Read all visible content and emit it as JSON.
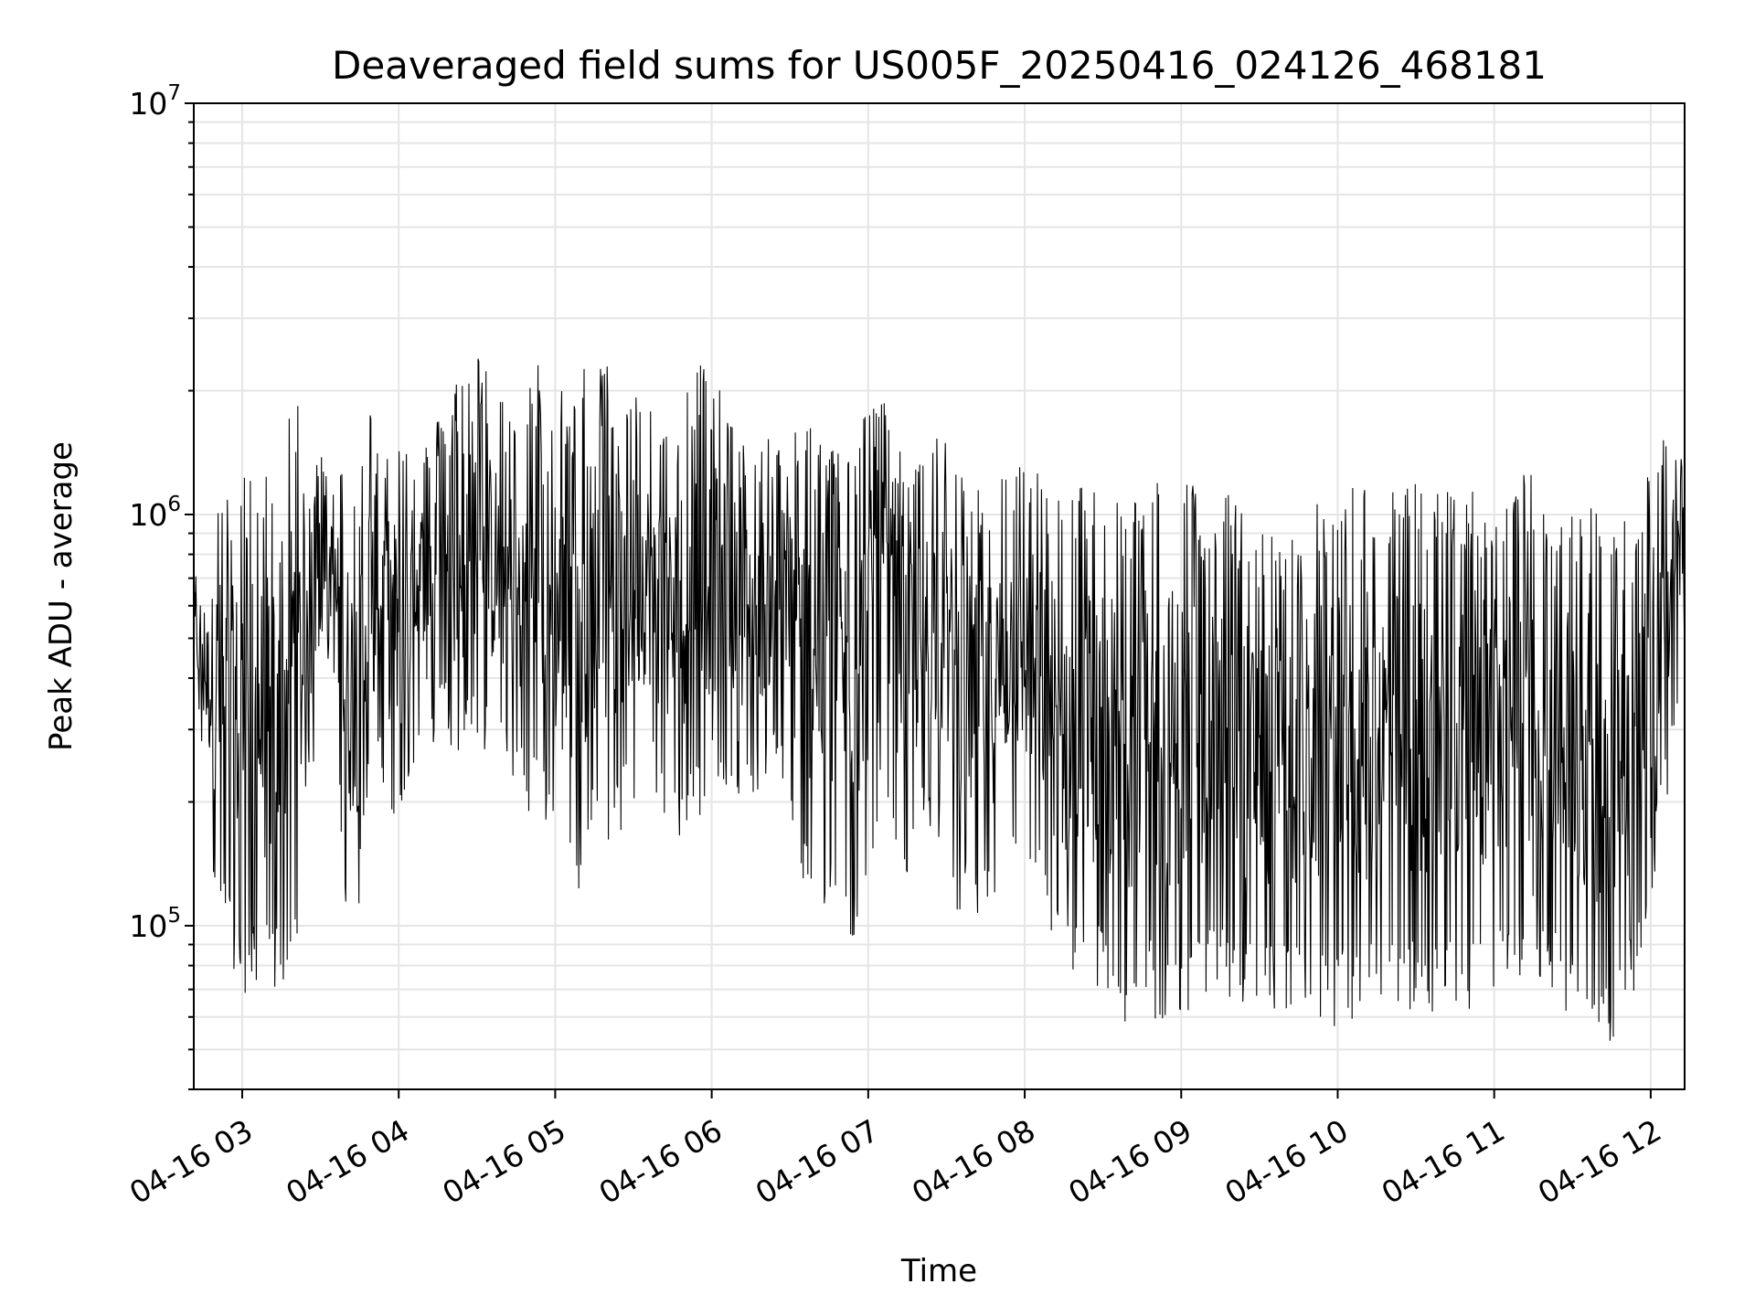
{
  "chart_data": {
    "type": "line",
    "title": "Deaveraged field sums for US005F_20250416_024126_468181",
    "xlabel": "Time",
    "ylabel": "Peak ADU - average",
    "yscale": "log",
    "ylim": [
      40000,
      10000000
    ],
    "xlim": [
      "2025-04-16T02:41:26",
      "2025-04-16T12:13:00"
    ],
    "grid": true,
    "line_color": "#000000",
    "grid_color": "#e5e5e5",
    "x_ticks": [
      {
        "label": "04-16 03",
        "t": "2025-04-16T03:00:00"
      },
      {
        "label": "04-16 04",
        "t": "2025-04-16T04:00:00"
      },
      {
        "label": "04-16 05",
        "t": "2025-04-16T05:00:00"
      },
      {
        "label": "04-16 06",
        "t": "2025-04-16T06:00:00"
      },
      {
        "label": "04-16 07",
        "t": "2025-04-16T07:00:00"
      },
      {
        "label": "04-16 08",
        "t": "2025-04-16T08:00:00"
      },
      {
        "label": "04-16 09",
        "t": "2025-04-16T09:00:00"
      },
      {
        "label": "04-16 10",
        "t": "2025-04-16T10:00:00"
      },
      {
        "label": "04-16 11",
        "t": "2025-04-16T11:00:00"
      },
      {
        "label": "04-16 12",
        "t": "2025-04-16T12:00:00"
      }
    ],
    "y_ticks": [
      {
        "base": "10",
        "exp": "5",
        "value": 100000
      },
      {
        "base": "10",
        "exp": "6",
        "value": 1000000
      },
      {
        "base": "10",
        "exp": "7",
        "value": 10000000
      }
    ],
    "series": [
      {
        "x": [
          "2025-04-16T02:41:26",
          "2025-04-16T02:45:00",
          "2025-04-16T02:50:00",
          "2025-04-16T02:55:00",
          "2025-04-16T03:00:00",
          "2025-04-16T03:05:00",
          "2025-04-16T03:10:00",
          "2025-04-16T03:15:00",
          "2025-04-16T03:20:00",
          "2025-04-16T03:25:00",
          "2025-04-16T03:30:00",
          "2025-04-16T03:35:00",
          "2025-04-16T03:40:00",
          "2025-04-16T03:45:00",
          "2025-04-16T03:50:00",
          "2025-04-16T03:55:00",
          "2025-04-16T04:00:00",
          "2025-04-16T04:10:00",
          "2025-04-16T04:20:00",
          "2025-04-16T04:27:00",
          "2025-04-16T04:35:00",
          "2025-04-16T04:45:00",
          "2025-04-16T04:55:00",
          "2025-04-16T05:05:00",
          "2025-04-16T05:15:00",
          "2025-04-16T05:25:00",
          "2025-04-16T05:35:00",
          "2025-04-16T05:45:00",
          "2025-04-16T05:55:00",
          "2025-04-16T06:05:00",
          "2025-04-16T06:15:00",
          "2025-04-16T06:25:00",
          "2025-04-16T06:35:00",
          "2025-04-16T06:45:00",
          "2025-04-16T06:55:00",
          "2025-04-16T07:05:00",
          "2025-04-16T07:15:00",
          "2025-04-16T07:25:00",
          "2025-04-16T07:35:00",
          "2025-04-16T07:45:00",
          "2025-04-16T07:55:00",
          "2025-04-16T08:05:00",
          "2025-04-16T08:15:00",
          "2025-04-16T08:25:00",
          "2025-04-16T08:35:00",
          "2025-04-16T08:45:00",
          "2025-04-16T08:55:00",
          "2025-04-16T09:05:00",
          "2025-04-16T09:15:00",
          "2025-04-16T09:25:00",
          "2025-04-16T09:35:00",
          "2025-04-16T09:45:00",
          "2025-04-16T09:55:00",
          "2025-04-16T10:05:00",
          "2025-04-16T10:15:00",
          "2025-04-16T10:25:00",
          "2025-04-16T10:35:00",
          "2025-04-16T10:45:00",
          "2025-04-16T10:55:00",
          "2025-04-16T11:05:00",
          "2025-04-16T11:15:00",
          "2025-04-16T11:25:00",
          "2025-04-16T11:35:00",
          "2025-04-16T11:45:00",
          "2025-04-16T11:55:00",
          "2025-04-16T12:05:00",
          "2025-04-16T12:13:00"
        ],
        "hi": [
          750000,
          600000,
          1200000,
          1100000,
          1300000,
          1250000,
          1300000,
          1100000,
          2300000,
          1000000,
          1600000,
          1200000,
          1400000,
          1300000,
          2000000,
          1500000,
          1600000,
          1500000,
          2000000,
          2900000,
          2200000,
          1800000,
          2500000,
          2000000,
          2600000,
          2100000,
          2000000,
          1800000,
          2500000,
          1900000,
          1400000,
          1600000,
          1800000,
          1500000,
          1600000,
          2300000,
          1200000,
          1700000,
          1300000,
          1100000,
          1400000,
          1300000,
          1200000,
          1200000,
          1200000,
          1200000,
          1300000,
          1200000,
          1200000,
          1000000,
          900000,
          1000000,
          1100000,
          1200000,
          1200000,
          1200000,
          1200000,
          1200000,
          1200000,
          1200000,
          1300000,
          1200000,
          1100000,
          1000000,
          1000000,
          1900000,
          1400000
        ],
        "lo": [
          400000,
          250000,
          110000,
          85000,
          68000,
          70000,
          65000,
          70000,
          90000,
          120000,
          500000,
          400000,
          90000,
          100000,
          300000,
          200000,
          150000,
          350000,
          140000,
          300000,
          250000,
          200000,
          180000,
          100000,
          160000,
          160000,
          230000,
          150000,
          180000,
          220000,
          200000,
          250000,
          110000,
          100000,
          90000,
          170000,
          130000,
          180000,
          100000,
          95000,
          150000,
          120000,
          65000,
          70000,
          55000,
          60000,
          55000,
          60000,
          65000,
          60000,
          62000,
          60000,
          58000,
          55000,
          60000,
          62000,
          58000,
          60000,
          65000,
          70000,
          80000,
          60000,
          55000,
          52000,
          70000,
          180000,
          400000
        ]
      }
    ]
  }
}
